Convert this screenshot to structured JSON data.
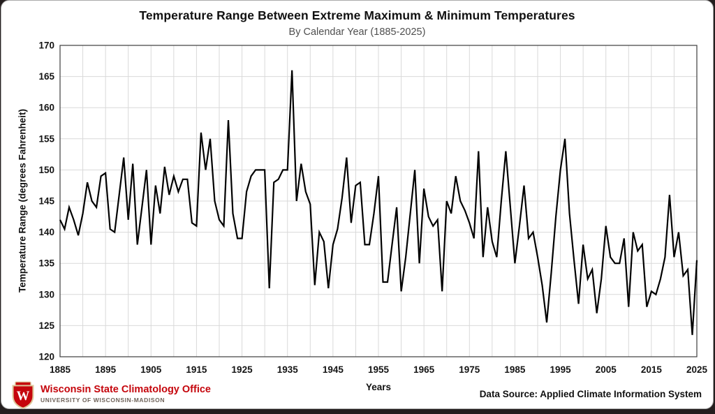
{
  "chart_data": {
    "type": "line",
    "title": "Temperature Range Between Extreme Maximum & Minimum Temperatures",
    "subtitle": "By Calendar Year (1885-2025)",
    "xlabel": "Years",
    "ylabel": "Temperature Range (degrees Fahrenheit)",
    "xlim": [
      1885,
      2025
    ],
    "ylim": [
      120,
      170
    ],
    "x_ticks": [
      1885,
      1895,
      1905,
      1915,
      1925,
      1935,
      1945,
      1955,
      1965,
      1975,
      1985,
      1995,
      2005,
      2015,
      2025
    ],
    "y_ticks": [
      120,
      125,
      130,
      135,
      140,
      145,
      150,
      155,
      160,
      165,
      170
    ],
    "x_grid_step": 5,
    "y_grid_step": 5,
    "grid": true,
    "legend": "none",
    "x_start": 1885,
    "x_step": 1,
    "values": [
      142,
      140.5,
      144,
      142,
      139.5,
      143,
      148,
      145,
      144,
      149,
      149.5,
      140.5,
      140,
      146,
      152,
      142,
      151,
      138,
      144,
      150,
      138,
      147.5,
      143,
      150.5,
      146,
      149,
      146.5,
      148.5,
      148.5,
      141.5,
      141,
      156,
      150,
      155,
      145,
      142,
      141,
      158,
      143,
      139,
      139,
      146.5,
      149,
      150,
      150,
      150,
      131,
      148,
      148.5,
      150,
      150,
      166,
      145,
      151,
      146.5,
      144.5,
      131.5,
      140,
      138.5,
      131,
      138,
      140.5,
      145.5,
      152,
      141.5,
      147.5,
      148,
      138,
      138,
      143,
      149,
      132,
      132,
      138,
      144,
      130.5,
      136,
      143,
      150,
      135,
      147,
      142.5,
      141,
      142,
      130.5,
      145,
      143,
      149,
      145,
      143.5,
      141.5,
      139,
      153,
      136,
      144,
      138.5,
      136,
      145,
      153,
      144,
      135,
      141,
      147.5,
      139,
      140,
      136,
      131.5,
      125.5,
      133.5,
      142.5,
      150,
      155,
      143,
      135.5,
      128.5,
      138,
      132.5,
      134,
      127,
      132.5,
      141,
      136,
      135,
      135,
      139,
      128,
      140,
      137,
      138,
      128,
      130.5,
      130,
      132.5,
      136,
      146,
      136,
      140,
      133,
      134,
      123.5,
      135.5
    ]
  },
  "footer": {
    "org_name": "Wisconsin State Climatology Office",
    "org_sub": "UNIVERSITY OF WISCONSIN-MADISON",
    "data_source": "Data Source: Applied Climate Information System",
    "crest_letter": "W"
  },
  "colors": {
    "line": "#000000",
    "grid": "#d9d9d9",
    "plot_border": "#3d3d3d",
    "tick_text": "#141414",
    "brand_red": "#c5050c",
    "crest_trim": "#dcc79a"
  }
}
